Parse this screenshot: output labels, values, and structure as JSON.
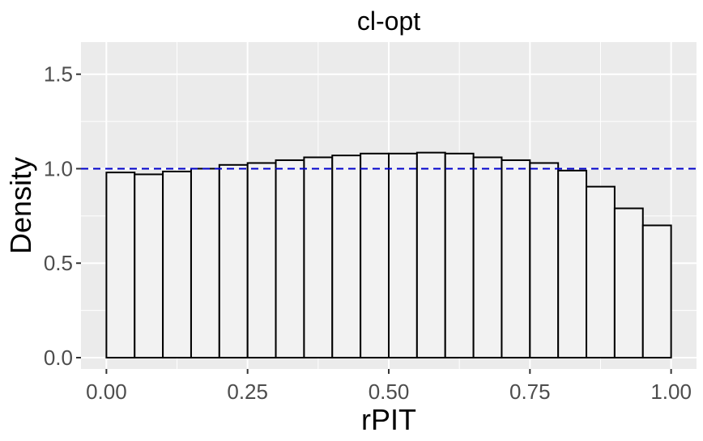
{
  "chart_data": {
    "type": "bar",
    "title": "cl-opt",
    "xlabel": "rPIT",
    "ylabel": "Density",
    "xlim": [
      -0.045,
      1.045
    ],
    "ylim": [
      -0.06,
      1.67
    ],
    "x_ticks": [
      "0.00",
      "0.25",
      "0.50",
      "0.75",
      "1.00"
    ],
    "x_tick_values": [
      0,
      0.25,
      0.5,
      0.75,
      1
    ],
    "y_ticks": [
      "0.0",
      "0.5",
      "1.0",
      "1.5"
    ],
    "y_tick_values": [
      0,
      0.5,
      1,
      1.5
    ],
    "bin_edges": [
      0,
      0.05,
      0.1,
      0.15,
      0.2,
      0.25,
      0.3,
      0.35,
      0.4,
      0.45,
      0.5,
      0.55,
      0.6,
      0.65,
      0.7,
      0.75,
      0.8,
      0.85,
      0.9,
      0.95,
      1.0
    ],
    "values": [
      0.98,
      0.97,
      0.985,
      1.0,
      1.02,
      1.03,
      1.045,
      1.06,
      1.07,
      1.08,
      1.08,
      1.085,
      1.08,
      1.06,
      1.045,
      1.03,
      0.99,
      0.905,
      0.79,
      0.7
    ],
    "reference_line": {
      "y": 1.0,
      "style": "dashed",
      "color": "#0000cc"
    },
    "colors": {
      "panel_background": "#ebebeb",
      "grid": "#ffffff",
      "bar_fill": "#f2f2f2",
      "bar_stroke": "#000000"
    },
    "grid": true
  }
}
